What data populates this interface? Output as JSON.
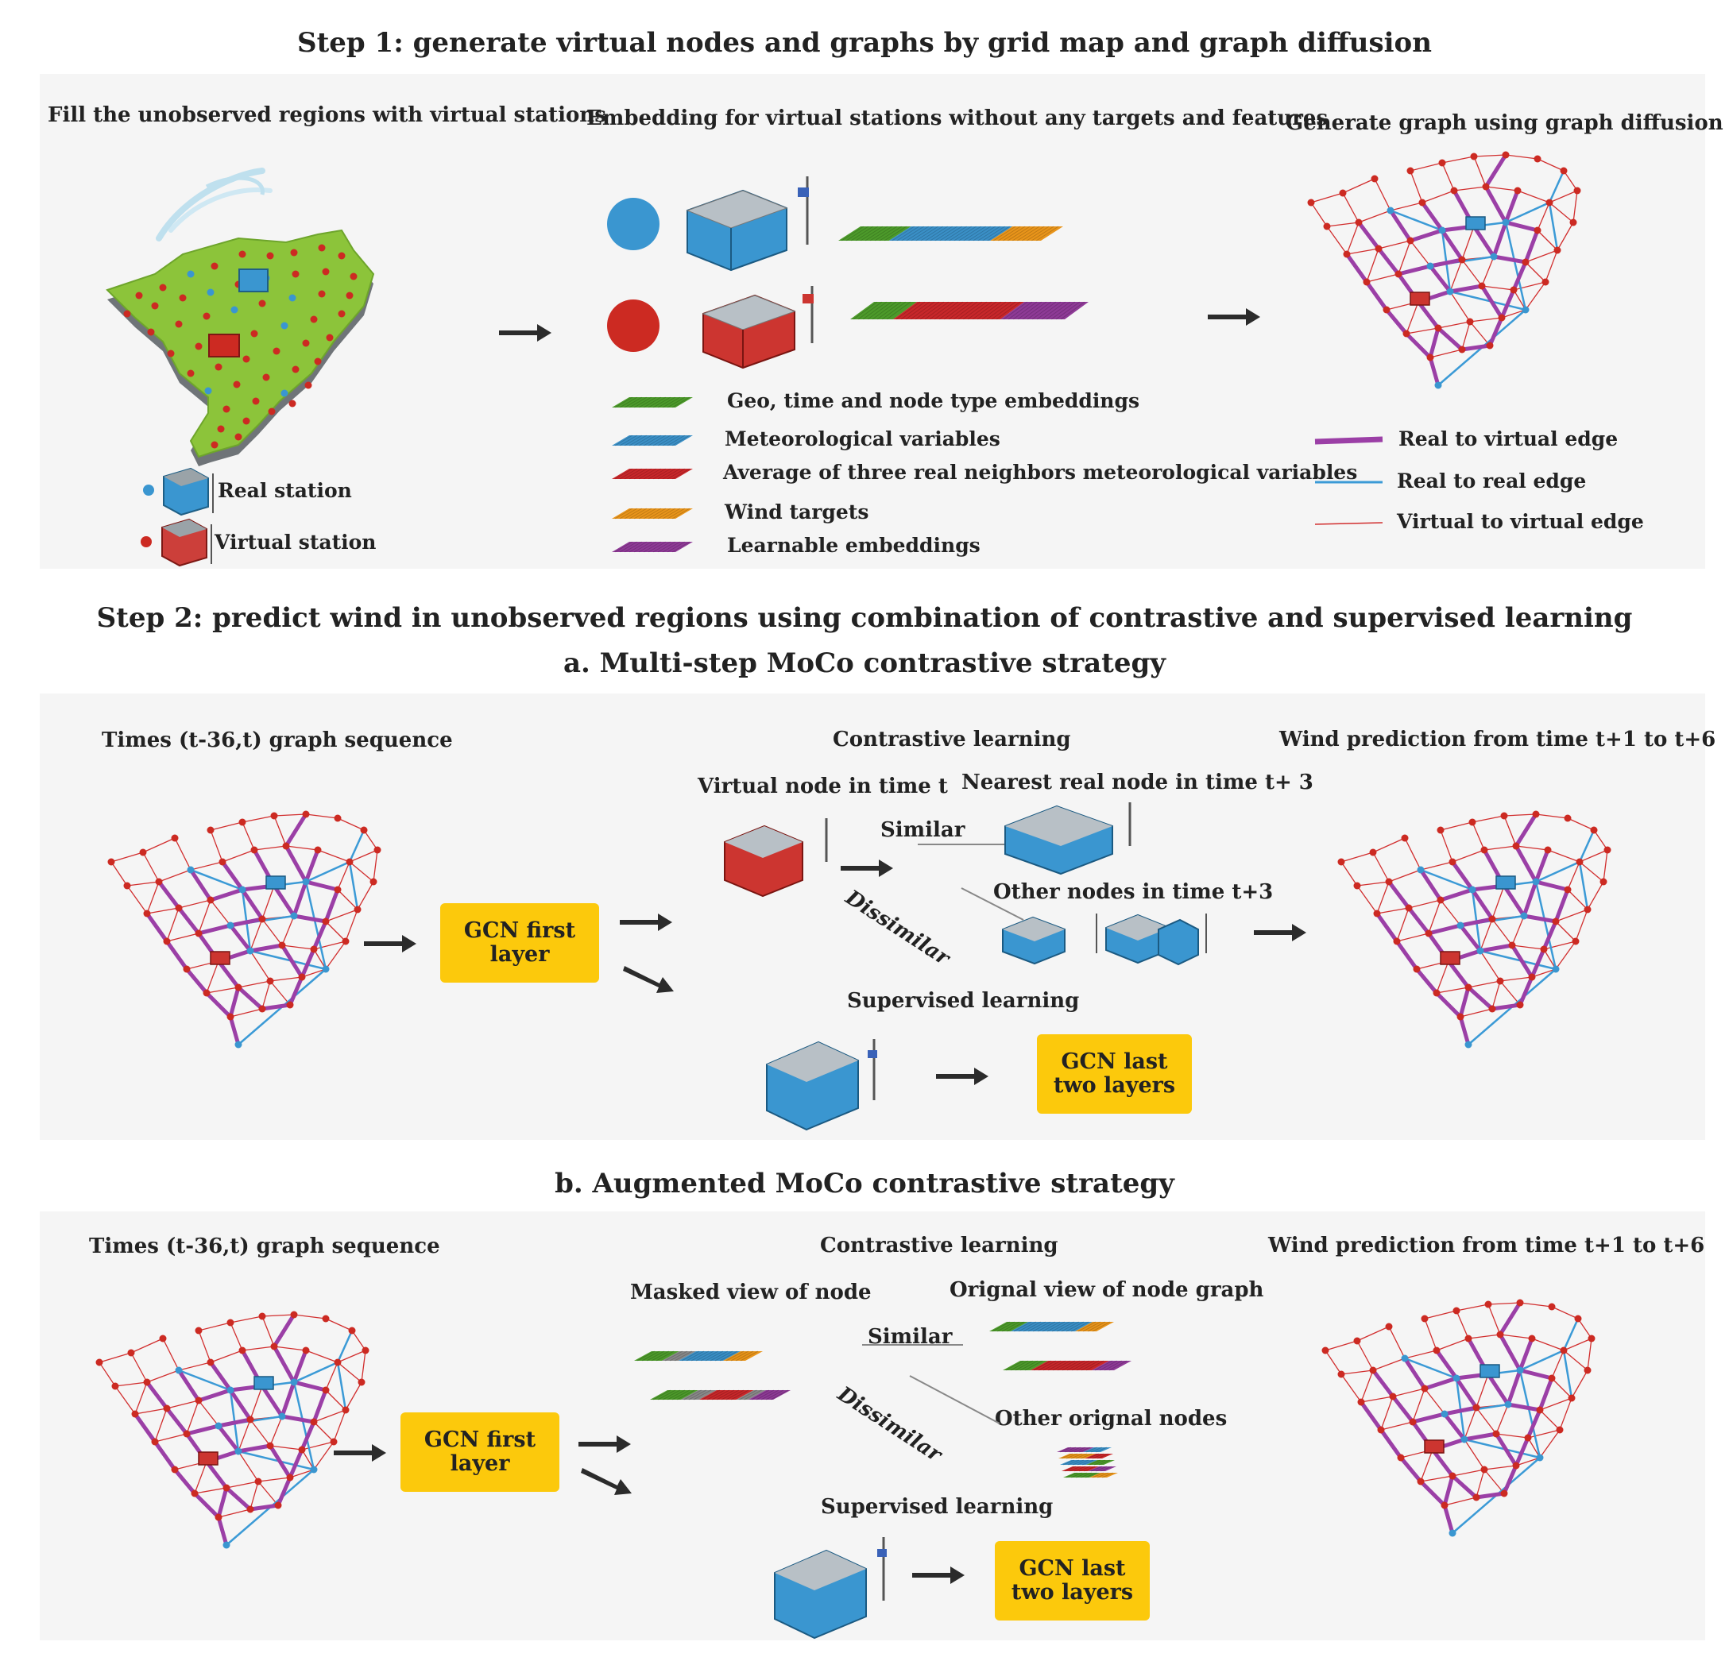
{
  "step1": {
    "title": "Step 1: generate virtual nodes and graphs by grid map and graph diffusion",
    "col1_title": "Fill the unobserved regions with virtual stations",
    "col2_title": "Embedding for virtual stations without any targets and features",
    "col3_title": "Generate graph using graph diffusion",
    "real_station": "Real station",
    "virtual_station": "Virtual station",
    "embeddings_legend": [
      {
        "label": "Geo, time and node type embeddings",
        "color": "#4c9a2a"
      },
      {
        "label": "Meteorological variables",
        "color": "#3a8fc6"
      },
      {
        "label": "Average of three real neighbors meteorological variables",
        "color": "#c8272a"
      },
      {
        "label": "Wind targets",
        "color": "#e8941a"
      },
      {
        "label": "Learnable embeddings",
        "color": "#8e3a96"
      }
    ],
    "edge_legend": [
      {
        "label": "Real to virtual edge",
        "color": "#9b3fa6"
      },
      {
        "label": "Real to real edge",
        "color": "#3b9ad6"
      },
      {
        "label": "Virtual to virtual edge",
        "color": "#d12e2e"
      }
    ]
  },
  "step2": {
    "title": "Step 2: predict wind in unobserved regions using combination of contrastive and supervised learning",
    "a": {
      "title": "a. Multi-step MoCo contrastive strategy",
      "left_title": "Times (t-36,t) graph sequence",
      "mid_title": "Contrastive learning",
      "right_title": "Wind prediction from time t+1 to t+6",
      "gcn_first": "GCN first layer",
      "anchor": "Virtual node in time t",
      "positive": "Nearest real node in time t+ 3",
      "negative": "Other nodes in time t+3",
      "similar": "Similar",
      "dissimilar": "Dissimilar",
      "supervised": "Supervised learning",
      "gcn_last": [
        "GCN last",
        "two layers"
      ]
    },
    "b": {
      "title": "b. Augmented MoCo contrastive strategy",
      "left_title": "Times (t-36,t) graph sequence",
      "mid_title": "Contrastive learning",
      "right_title": "Wind prediction from time t+1 to t+6",
      "gcn_first": "GCN first layer",
      "anchor": "Masked view of node",
      "positive": "Orignal view of node graph",
      "negative": "Other orignal nodes",
      "similar": "Similar",
      "dissimilar": "Dissimilar",
      "supervised": "Supervised learning",
      "gcn_last": [
        "GCN last",
        "two layers"
      ]
    }
  },
  "colors": {
    "panel": "#f5f5f5",
    "gcn_box": "#fcc90c",
    "real_node": "#3a96d0",
    "virtual_node": "#cc2a22",
    "map_green": "#8cc43a",
    "arrow": "#2b2b2b"
  }
}
